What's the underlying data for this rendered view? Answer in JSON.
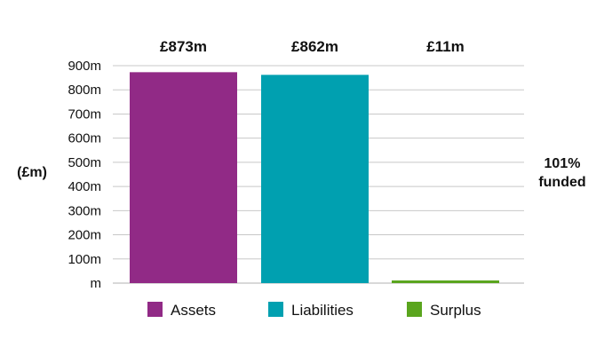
{
  "chart_data": {
    "type": "bar",
    "categories": [
      "Assets",
      "Liabilities",
      "Surplus"
    ],
    "values": [
      873,
      862,
      11
    ],
    "data_labels": [
      "£873m",
      "£862m",
      "£11m"
    ],
    "colors": [
      "#912a86",
      "#00a0b0",
      "#5aa51e"
    ],
    "ylabel": "(£m)",
    "ylim": [
      0,
      900
    ],
    "yticks": [
      0,
      100,
      200,
      300,
      400,
      500,
      600,
      700,
      800,
      900
    ],
    "ytick_labels": [
      "m",
      "100m",
      "200m",
      "300m",
      "400m",
      "500m",
      "600m",
      "700m",
      "800m",
      "900m"
    ],
    "grid": true,
    "legend": {
      "placement": "bottom",
      "entries": [
        "Assets",
        "Liabilities",
        "Surplus"
      ]
    },
    "annotation": {
      "line1": "101%",
      "line2": "funded"
    }
  }
}
